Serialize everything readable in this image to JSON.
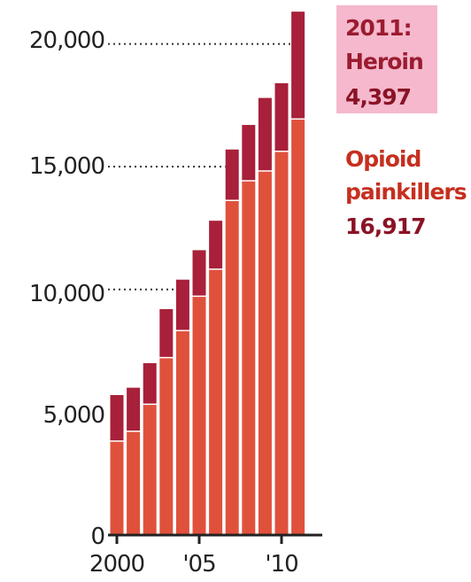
{
  "chart_data": {
    "type": "bar",
    "stacked": true,
    "x": [
      2000,
      2001,
      2002,
      2003,
      2004,
      2005,
      2006,
      2007,
      2008,
      2009,
      2010,
      2011
    ],
    "x_tick_labels": [
      "2000",
      "'05",
      "'10"
    ],
    "x_tick_positions": [
      2000,
      2005,
      2010
    ],
    "series": [
      {
        "name": "Opioid painkillers",
        "color": "#e0513c",
        "values": [
          3800,
          4200,
          5300,
          7200,
          8300,
          9700,
          10800,
          13600,
          14400,
          14800,
          15600,
          16917
        ]
      },
      {
        "name": "Heroin",
        "color": "#a8203a",
        "values": [
          1900,
          1800,
          1700,
          2000,
          2100,
          1900,
          2000,
          2100,
          2300,
          3000,
          2800,
          4397
        ]
      }
    ],
    "y_tick_labels": [
      "0",
      "5,000",
      "10,000",
      "15,000",
      "20,000"
    ],
    "y_tick_values": [
      0,
      5000,
      10000,
      15000,
      20000
    ],
    "ylim": [
      0,
      21500
    ],
    "gridlines": "dotted at 10,000, 15,000 and 20,000",
    "annotations": {
      "heroin": {
        "year": "2011:",
        "label": "Heroin",
        "value": "4,397",
        "background": "#f5b8cc"
      },
      "opioid": {
        "line1": "Opioid",
        "line2": "painkillers",
        "value": "16,917"
      }
    }
  }
}
